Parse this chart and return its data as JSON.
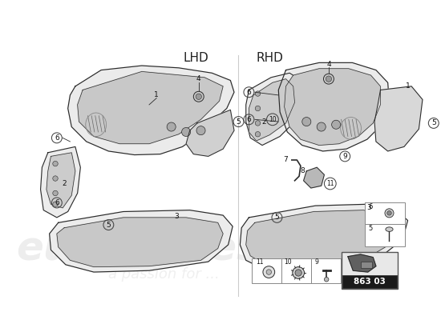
{
  "bg_color": "#ffffff",
  "lhd_label": "LHD",
  "rhd_label": "RHD",
  "part_number": "863 03",
  "line_color": "#2a2a2a",
  "fill_color": "#f5f5f5",
  "fill_dark": "#d8d8d8",
  "circle_color": "#444444",
  "label_color": "#111111",
  "watermark_gray": "#d0d0d0",
  "watermark_yellow": "#d4c060",
  "divider_color": "#cccccc",
  "box_border": "#888888"
}
